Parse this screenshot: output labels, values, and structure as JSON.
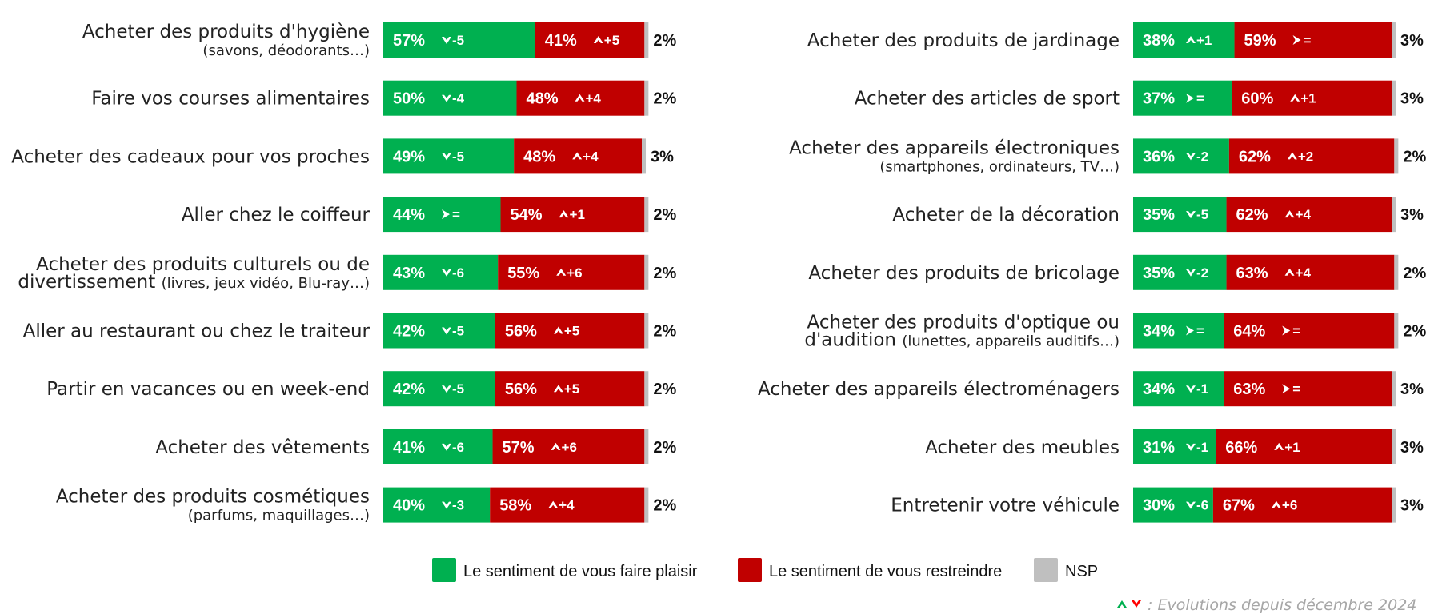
{
  "chart_data": {
    "type": "bar",
    "stacked": true,
    "orientation": "horizontal",
    "scale_max": 100,
    "series": [
      {
        "name": "Le sentiment de vous faire plaisir",
        "color": "#00b050"
      },
      {
        "name": "Le sentiment de vous restreindre",
        "color": "#c00000"
      },
      {
        "name": "NSP",
        "color": "#bfbfbf"
      }
    ],
    "footnote": ": Evolutions depuis décembre 2024",
    "evolution_colors": {
      "up": "#00b050",
      "down": "#ff0000"
    },
    "panels": [
      {
        "rows": [
          {
            "label": "Acheter des produits d'hygiène",
            "sub": "(savons, déodorants…)",
            "plaisir": 57,
            "plaisir_label": "57%",
            "plaisir_evo": {
              "dir": "down",
              "text": "-5"
            },
            "restreindre": 41,
            "restreindre_label": "41%",
            "restreindre_evo": {
              "dir": "up",
              "text": "+5"
            },
            "nsp": 2,
            "nsp_label": "2%"
          },
          {
            "label": "Faire vos courses alimentaires",
            "plaisir": 50,
            "plaisir_label": "50%",
            "plaisir_evo": {
              "dir": "down",
              "text": "-4"
            },
            "restreindre": 48,
            "restreindre_label": "48%",
            "restreindre_evo": {
              "dir": "up",
              "text": "+4"
            },
            "nsp": 2,
            "nsp_label": "2%"
          },
          {
            "label": "Acheter des cadeaux pour vos proches",
            "plaisir": 49,
            "plaisir_label": "49%",
            "plaisir_evo": {
              "dir": "down",
              "text": "-5"
            },
            "restreindre": 48,
            "restreindre_label": "48%",
            "restreindre_evo": {
              "dir": "up",
              "text": "+4"
            },
            "nsp": 3,
            "nsp_label": "3%"
          },
          {
            "label": "Aller chez le coiffeur",
            "plaisir": 44,
            "plaisir_label": "44%",
            "plaisir_evo": {
              "dir": "eq",
              "text": "="
            },
            "restreindre": 54,
            "restreindre_label": "54%",
            "restreindre_evo": {
              "dir": "up",
              "text": "+1"
            },
            "nsp": 2,
            "nsp_label": "2%"
          },
          {
            "label": "Acheter des produits culturels ou de",
            "label_line2": "divertissement",
            "sub": "(livres, jeux vidéo, Blu-ray…)",
            "plaisir": 43,
            "plaisir_label": "43%",
            "plaisir_evo": {
              "dir": "down",
              "text": "-6"
            },
            "restreindre": 55,
            "restreindre_label": "55%",
            "restreindre_evo": {
              "dir": "up",
              "text": "+6"
            },
            "nsp": 2,
            "nsp_label": "2%"
          },
          {
            "label": "Aller au restaurant ou chez le traiteur",
            "plaisir": 42,
            "plaisir_label": "42%",
            "plaisir_evo": {
              "dir": "down",
              "text": "-5"
            },
            "restreindre": 56,
            "restreindre_label": "56%",
            "restreindre_evo": {
              "dir": "up",
              "text": "+5"
            },
            "nsp": 2,
            "nsp_label": "2%"
          },
          {
            "label": "Partir en vacances ou en week-end",
            "plaisir": 42,
            "plaisir_label": "42%",
            "plaisir_evo": {
              "dir": "down",
              "text": "-5"
            },
            "restreindre": 56,
            "restreindre_label": "56%",
            "restreindre_evo": {
              "dir": "up",
              "text": "+5"
            },
            "nsp": 2,
            "nsp_label": "2%"
          },
          {
            "label": "Acheter des vêtements",
            "plaisir": 41,
            "plaisir_label": "41%",
            "plaisir_evo": {
              "dir": "down",
              "text": "-6"
            },
            "restreindre": 57,
            "restreindre_label": "57%",
            "restreindre_evo": {
              "dir": "up",
              "text": "+6"
            },
            "nsp": 2,
            "nsp_label": "2%"
          },
          {
            "label": "Acheter des produits cosmétiques",
            "sub": "(parfums, maquillages…)",
            "plaisir": 40,
            "plaisir_label": "40%",
            "plaisir_evo": {
              "dir": "down",
              "text": "-3"
            },
            "restreindre": 58,
            "restreindre_label": "58%",
            "restreindre_evo": {
              "dir": "up",
              "text": "+4"
            },
            "nsp": 2,
            "nsp_label": "2%"
          }
        ]
      },
      {
        "rows": [
          {
            "label": "Acheter des produits de jardinage",
            "plaisir": 38,
            "plaisir_label": "38%",
            "plaisir_evo": {
              "dir": "up",
              "text": "+1"
            },
            "restreindre": 59,
            "restreindre_label": "59%",
            "restreindre_evo": {
              "dir": "eq",
              "text": "="
            },
            "nsp": 3,
            "nsp_label": "3%"
          },
          {
            "label": "Acheter des articles de sport",
            "plaisir": 37,
            "plaisir_label": "37%",
            "plaisir_evo": {
              "dir": "eq",
              "text": "="
            },
            "restreindre": 60,
            "restreindre_label": "60%",
            "restreindre_evo": {
              "dir": "up",
              "text": "+1"
            },
            "nsp": 3,
            "nsp_label": "3%"
          },
          {
            "label": "Acheter des appareils électroniques",
            "sub": "(smartphones, ordinateurs, TV…)",
            "plaisir": 36,
            "plaisir_label": "36%",
            "plaisir_evo": {
              "dir": "down",
              "text": "-2"
            },
            "restreindre": 62,
            "restreindre_label": "62%",
            "restreindre_evo": {
              "dir": "up",
              "text": "+2"
            },
            "nsp": 2,
            "nsp_label": "2%"
          },
          {
            "label": "Acheter de la décoration",
            "plaisir": 35,
            "plaisir_label": "35%",
            "plaisir_evo": {
              "dir": "down",
              "text": "-5"
            },
            "restreindre": 62,
            "restreindre_label": "62%",
            "restreindre_evo": {
              "dir": "up",
              "text": "+4"
            },
            "nsp": 3,
            "nsp_label": "3%"
          },
          {
            "label": "Acheter des produits de bricolage",
            "plaisir": 35,
            "plaisir_label": "35%",
            "plaisir_evo": {
              "dir": "down",
              "text": "-2"
            },
            "restreindre": 63,
            "restreindre_label": "63%",
            "restreindre_evo": {
              "dir": "up",
              "text": "+4"
            },
            "nsp": 2,
            "nsp_label": "2%"
          },
          {
            "label": "Acheter des produits d'optique ou",
            "label_line2": "d'audition",
            "sub": "(lunettes, appareils auditifs…)",
            "plaisir": 34,
            "plaisir_label": "34%",
            "plaisir_evo": {
              "dir": "eq",
              "text": "="
            },
            "restreindre": 64,
            "restreindre_label": "64%",
            "restreindre_evo": {
              "dir": "eq",
              "text": "="
            },
            "nsp": 2,
            "nsp_label": "2%"
          },
          {
            "label": "Acheter des appareils électroménagers",
            "plaisir": 34,
            "plaisir_label": "34%",
            "plaisir_evo": {
              "dir": "down",
              "text": "-1"
            },
            "restreindre": 63,
            "restreindre_label": "63%",
            "restreindre_evo": {
              "dir": "eq",
              "text": "="
            },
            "nsp": 3,
            "nsp_label": "3%"
          },
          {
            "label": "Acheter des meubles",
            "plaisir": 31,
            "plaisir_label": "31%",
            "plaisir_evo": {
              "dir": "down",
              "text": "-1"
            },
            "restreindre": 66,
            "restreindre_label": "66%",
            "restreindre_evo": {
              "dir": "up",
              "text": "+1"
            },
            "nsp": 3,
            "nsp_label": "3%"
          },
          {
            "label": "Entretenir votre véhicule",
            "plaisir": 30,
            "plaisir_label": "30%",
            "plaisir_evo": {
              "dir": "down",
              "text": "-6"
            },
            "restreindre": 67,
            "restreindre_label": "67%",
            "restreindre_evo": {
              "dir": "up",
              "text": "+6"
            },
            "nsp": 3,
            "nsp_label": "3%"
          }
        ]
      }
    ]
  }
}
